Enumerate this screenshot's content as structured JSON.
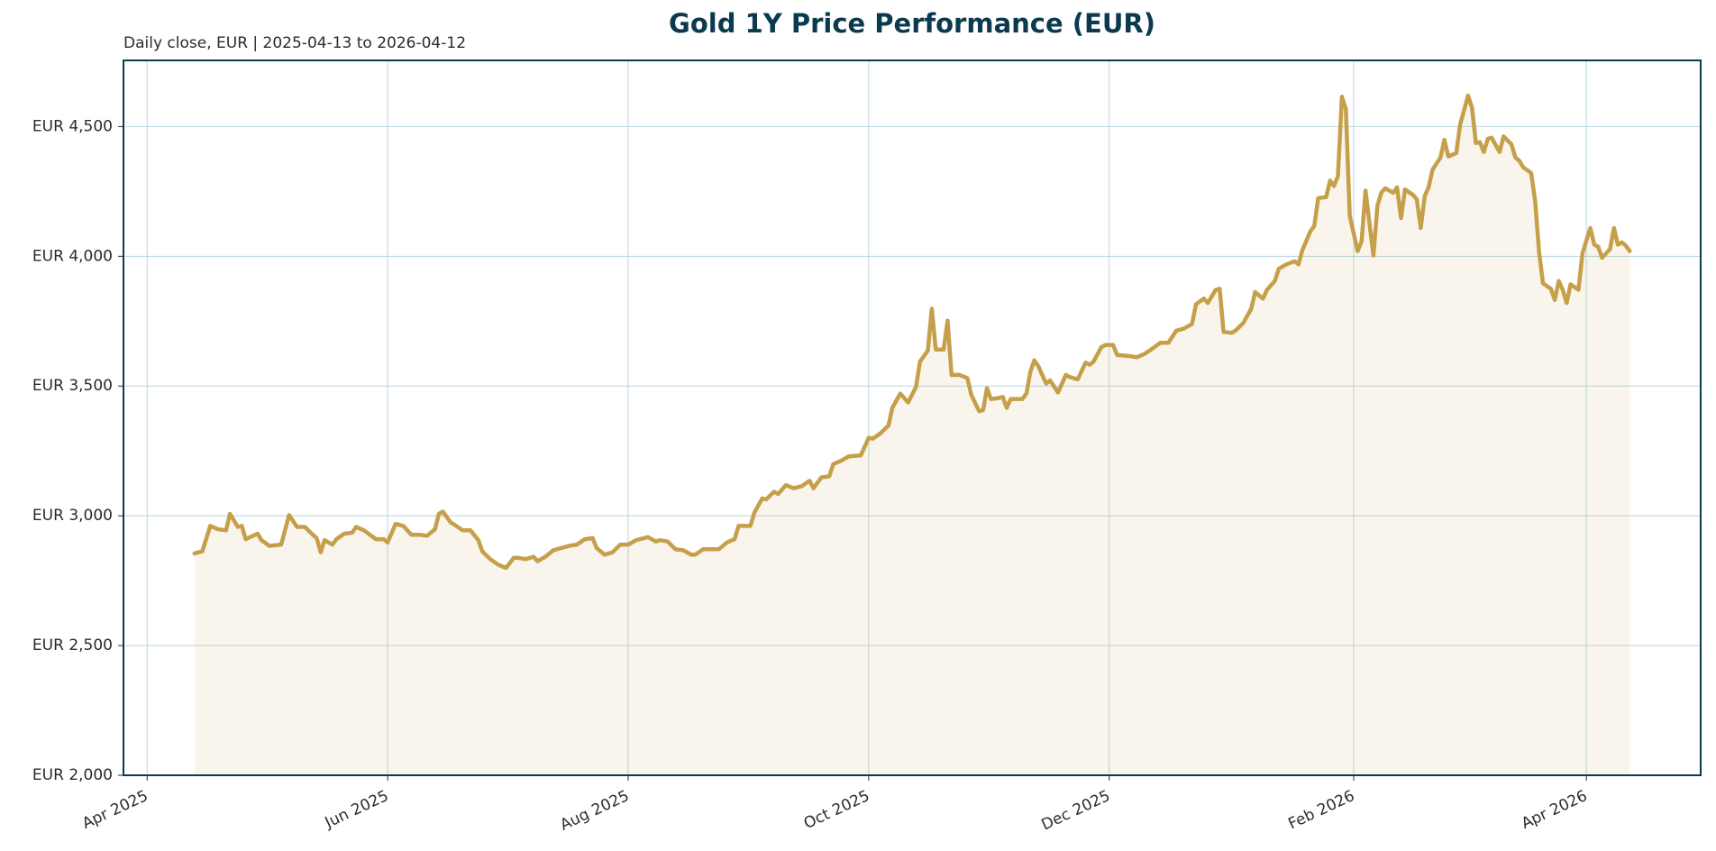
{
  "chart_data": {
    "type": "line",
    "title": "Gold 1Y Price Performance (EUR)",
    "subtitle": "Daily close, EUR | 2025-04-13 to 2026-04-12",
    "x": [
      "2025-04-13",
      "2025-04-15",
      "2025-04-17",
      "2025-04-19",
      "2025-04-21",
      "2025-04-22",
      "2025-04-24",
      "2025-04-25",
      "2025-04-26",
      "2025-04-29",
      "2025-04-30",
      "2025-05-02",
      "2025-05-05",
      "2025-05-07",
      "2025-05-09",
      "2025-05-11",
      "2025-05-13",
      "2025-05-14",
      "2025-05-15",
      "2025-05-16",
      "2025-05-18",
      "2025-05-19",
      "2025-05-21",
      "2025-05-23",
      "2025-05-24",
      "2025-05-26",
      "2025-05-29",
      "2025-05-31",
      "2025-06-01",
      "2025-06-03",
      "2025-06-05",
      "2025-06-07",
      "2025-06-09",
      "2025-06-11",
      "2025-06-13",
      "2025-06-14",
      "2025-06-15",
      "2025-06-17",
      "2025-06-18",
      "2025-06-20",
      "2025-06-22",
      "2025-06-24",
      "2025-06-25",
      "2025-06-27",
      "2025-06-29",
      "2025-07-01",
      "2025-07-03",
      "2025-07-04",
      "2025-07-06",
      "2025-07-08",
      "2025-07-09",
      "2025-07-11",
      "2025-07-13",
      "2025-07-15",
      "2025-07-17",
      "2025-07-19",
      "2025-07-21",
      "2025-07-23",
      "2025-07-24",
      "2025-07-26",
      "2025-07-28",
      "2025-07-30",
      "2025-08-01",
      "2025-08-03",
      "2025-08-04",
      "2025-08-06",
      "2025-08-08",
      "2025-08-09",
      "2025-08-11",
      "2025-08-13",
      "2025-08-15",
      "2025-08-17",
      "2025-08-18",
      "2025-08-20",
      "2025-08-22",
      "2025-08-24",
      "2025-08-26",
      "2025-08-28",
      "2025-08-29",
      "2025-09-01",
      "2025-09-02",
      "2025-09-04",
      "2025-09-05",
      "2025-09-07",
      "2025-09-08",
      "2025-09-10",
      "2025-09-12",
      "2025-09-14",
      "2025-09-16",
      "2025-09-17",
      "2025-09-19",
      "2025-09-21",
      "2025-09-22",
      "2025-09-24",
      "2025-09-26",
      "2025-09-29",
      "2025-10-01",
      "2025-10-02",
      "2025-10-04",
      "2025-10-06",
      "2025-10-07",
      "2025-10-09",
      "2025-10-11",
      "2025-10-13",
      "2025-10-14",
      "2025-10-16",
      "2025-10-17",
      "2025-10-18",
      "2025-10-20",
      "2025-10-21",
      "2025-10-22",
      "2025-10-24",
      "2025-10-26",
      "2025-10-27",
      "2025-10-29",
      "2025-10-30",
      "2025-10-31",
      "2025-11-01",
      "2025-11-03",
      "2025-11-04",
      "2025-11-05",
      "2025-11-06",
      "2025-11-09",
      "2025-11-10",
      "2025-11-11",
      "2025-11-12",
      "2025-11-13",
      "2025-11-15",
      "2025-11-16",
      "2025-11-18",
      "2025-11-20",
      "2025-11-21",
      "2025-11-23",
      "2025-11-25",
      "2025-11-26",
      "2025-11-27",
      "2025-11-29",
      "2025-11-30",
      "2025-12-02",
      "2025-12-03",
      "2025-12-06",
      "2025-12-08",
      "2025-12-10",
      "2025-12-12",
      "2025-12-14",
      "2025-12-16",
      "2025-12-18",
      "2025-12-20",
      "2025-12-22",
      "2025-12-23",
      "2025-12-25",
      "2025-12-26",
      "2025-12-28",
      "2025-12-29",
      "2025-12-30",
      "2026-01-01",
      "2026-01-02",
      "2026-01-04",
      "2026-01-06",
      "2026-01-07",
      "2026-01-09",
      "2026-01-10",
      "2026-01-12",
      "2026-01-13",
      "2026-01-15",
      "2026-01-17",
      "2026-01-18",
      "2026-01-19",
      "2026-01-21",
      "2026-01-22",
      "2026-01-23",
      "2026-01-25",
      "2026-01-26",
      "2026-01-27",
      "2026-01-28",
      "2026-01-29",
      "2026-01-30",
      "2026-01-31",
      "2026-02-02",
      "2026-02-03",
      "2026-02-04",
      "2026-02-06",
      "2026-02-07",
      "2026-02-08",
      "2026-02-09",
      "2026-02-11",
      "2026-02-12",
      "2026-02-13",
      "2026-02-14",
      "2026-02-16",
      "2026-02-17",
      "2026-02-18",
      "2026-02-19",
      "2026-02-20",
      "2026-02-21",
      "2026-02-23",
      "2026-02-24",
      "2026-02-25",
      "2026-02-27",
      "2026-02-28",
      "2026-03-02",
      "2026-03-03",
      "2026-03-04",
      "2026-03-05",
      "2026-03-06",
      "2026-03-07",
      "2026-03-08",
      "2026-03-10",
      "2026-03-11",
      "2026-03-13",
      "2026-03-14",
      "2026-03-15",
      "2026-03-16",
      "2026-03-18",
      "2026-03-19",
      "2026-03-20",
      "2026-03-21",
      "2026-03-23",
      "2026-03-24",
      "2026-03-25",
      "2026-03-26",
      "2026-03-27",
      "2026-03-28",
      "2026-03-30",
      "2026-03-31",
      "2026-04-02",
      "2026-04-03",
      "2026-04-04",
      "2026-04-05",
      "2026-04-07",
      "2026-04-08",
      "2026-04-09",
      "2026-04-10",
      "2026-04-11",
      "2026-04-12"
    ],
    "series": [
      {
        "name": "Gold",
        "color": "#c59f4a",
        "values": [
          2855,
          2863,
          2961,
          2948,
          2944,
          3008,
          2957,
          2961,
          2910,
          2931,
          2906,
          2884,
          2889,
          3003,
          2957,
          2957,
          2927,
          2914,
          2859,
          2906,
          2889,
          2910,
          2931,
          2935,
          2957,
          2944,
          2910,
          2910,
          2897,
          2969,
          2961,
          2927,
          2927,
          2923,
          2948,
          3008,
          3016,
          2974,
          2965,
          2944,
          2944,
          2906,
          2863,
          2833,
          2812,
          2799,
          2838,
          2838,
          2833,
          2842,
          2825,
          2842,
          2867,
          2876,
          2884,
          2889,
          2910,
          2914,
          2876,
          2850,
          2859,
          2889,
          2889,
          2906,
          2910,
          2918,
          2901,
          2906,
          2901,
          2871,
          2867,
          2850,
          2850,
          2871,
          2871,
          2871,
          2897,
          2910,
          2961,
          2961,
          3012,
          3067,
          3063,
          3093,
          3084,
          3118,
          3106,
          3114,
          3135,
          3106,
          3148,
          3152,
          3199,
          3212,
          3229,
          3233,
          3301,
          3297,
          3318,
          3348,
          3416,
          3471,
          3437,
          3497,
          3594,
          3637,
          3798,
          3641,
          3641,
          3752,
          3543,
          3543,
          3531,
          3467,
          3403,
          3407,
          3492,
          3450,
          3454,
          3458,
          3416,
          3450,
          3450,
          3471,
          3556,
          3599,
          3577,
          3509,
          3522,
          3475,
          3543,
          3535,
          3526,
          3590,
          3582,
          3594,
          3650,
          3658,
          3658,
          3620,
          3616,
          3611,
          3624,
          3645,
          3667,
          3667,
          3713,
          3722,
          3739,
          3815,
          3837,
          3820,
          3871,
          3875,
          3709,
          3705,
          3713,
          3743,
          3798,
          3862,
          3837,
          3871,
          3905,
          3952,
          3969,
          3981,
          3969,
          4024,
          4096,
          4117,
          4224,
          4228,
          4292,
          4271,
          4309,
          4615,
          4568,
          4156,
          4020,
          4058,
          4253,
          4003,
          4194,
          4245,
          4262,
          4245,
          4266,
          4147,
          4258,
          4237,
          4220,
          4109,
          4232,
          4266,
          4334,
          4381,
          4449,
          4385,
          4398,
          4508,
          4619,
          4572,
          4436,
          4440,
          4402,
          4453,
          4457,
          4402,
          4462,
          4432,
          4381,
          4368,
          4343,
          4321,
          4215,
          4020,
          3896,
          3875,
          3832,
          3905,
          3871,
          3820,
          3892,
          3871,
          4011,
          4109,
          4045,
          4037,
          3994,
          4028,
          4109,
          4045,
          4054,
          4041,
          4020
        ]
      }
    ],
    "xlim": [
      "2025-03-26",
      "2026-04-30"
    ],
    "xticks": [
      {
        "value": "2025-04-01",
        "label": "Apr 2025"
      },
      {
        "value": "2025-06-01",
        "label": "Jun 2025"
      },
      {
        "value": "2025-08-01",
        "label": "Aug 2025"
      },
      {
        "value": "2025-10-01",
        "label": "Oct 2025"
      },
      {
        "value": "2025-12-01",
        "label": "Dec 2025"
      },
      {
        "value": "2026-02-01",
        "label": "Feb 2026"
      },
      {
        "value": "2026-04-01",
        "label": "Apr 2026"
      }
    ],
    "ylim": [
      2000,
      4755
    ],
    "yticks": [
      {
        "value": 2000,
        "label": "EUR 2,000"
      },
      {
        "value": 2500,
        "label": "EUR 2,500"
      },
      {
        "value": 3000,
        "label": "EUR 3,000"
      },
      {
        "value": 3500,
        "label": "EUR 3,500"
      },
      {
        "value": 4000,
        "label": "EUR 4,000"
      },
      {
        "value": 4500,
        "label": "EUR 4,500"
      }
    ],
    "grid": true
  }
}
